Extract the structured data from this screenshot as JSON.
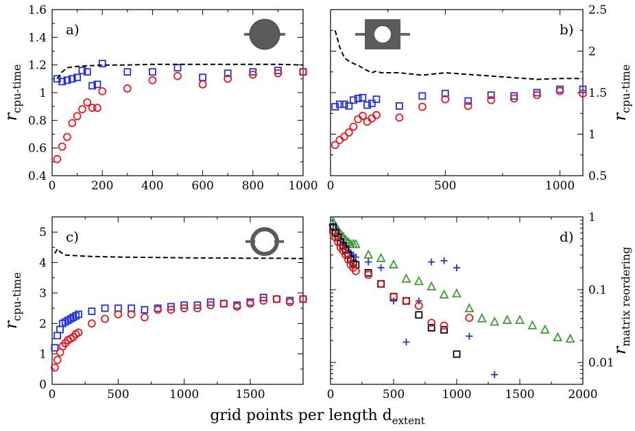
{
  "figure": {
    "xlabel_main": "grid points per length d",
    "xlabel_sub": "extent"
  },
  "chart_data": [
    {
      "id": "a",
      "type": "scatter",
      "panel_label": "a)",
      "ylabel_main": "r",
      "ylabel_sub": "cpu-time",
      "ylabel_side": "left",
      "xlim": [
        0,
        1000
      ],
      "ylim": [
        0.4,
        1.6
      ],
      "yscale": "linear",
      "xticks": [
        0,
        200,
        400,
        600,
        800,
        1000
      ],
      "yticks": [
        0.4,
        0.6,
        0.8,
        1.0,
        1.2,
        1.4,
        1.6
      ],
      "yticklabels": [
        "0.4",
        "0.6",
        "0.8",
        "1",
        "1.2",
        "1.4",
        "1.6"
      ],
      "inset": "disk",
      "series": [
        {
          "marker": "square",
          "color": "#1f2fd6",
          "x": [
            20,
            40,
            60,
            80,
            100,
            120,
            140,
            160,
            180,
            200,
            300,
            400,
            500,
            600,
            700,
            800,
            900,
            1000
          ],
          "y": [
            1.1,
            1.08,
            1.09,
            1.1,
            1.11,
            1.16,
            1.15,
            1.05,
            1.06,
            1.21,
            1.15,
            1.15,
            1.18,
            1.11,
            1.14,
            1.15,
            1.16,
            1.15
          ]
        },
        {
          "marker": "circle",
          "color": "#e8161b",
          "x": [
            20,
            40,
            60,
            80,
            100,
            120,
            140,
            160,
            180,
            200,
            300,
            400,
            500,
            600,
            700,
            800,
            900,
            1000
          ],
          "y": [
            0.52,
            0.61,
            0.68,
            0.78,
            0.83,
            0.88,
            0.93,
            0.89,
            0.89,
            1.01,
            1.03,
            1.09,
            1.12,
            1.06,
            1.1,
            1.13,
            1.14,
            1.15
          ]
        },
        {
          "marker": "dashed-line",
          "color": "#000000",
          "x": [
            20,
            40,
            60,
            100,
            150,
            200,
            300,
            400,
            500,
            600,
            700,
            800,
            900,
            1000
          ],
          "y": [
            1.1,
            1.15,
            1.18,
            1.19,
            1.195,
            1.2,
            1.2,
            1.205,
            1.205,
            1.205,
            1.205,
            1.205,
            1.205,
            1.2
          ]
        }
      ]
    },
    {
      "id": "b",
      "type": "scatter",
      "panel_label": "b)",
      "ylabel_main": "r",
      "ylabel_sub": "cpu-time",
      "ylabel_side": "right",
      "xlim": [
        0,
        1100
      ],
      "ylim": [
        0.5,
        2.5
      ],
      "yscale": "linear",
      "xticks": [
        0,
        500,
        1000
      ],
      "yticks": [
        0.5,
        1.0,
        1.5,
        2.0,
        2.5
      ],
      "yticklabels": [
        "0.5",
        "1",
        "1.5",
        "2",
        "2.5"
      ],
      "inset": "square-with-hole",
      "series": [
        {
          "marker": "square",
          "color": "#1f2fd6",
          "x": [
            20,
            40,
            60,
            80,
            100,
            120,
            140,
            160,
            180,
            200,
            300,
            400,
            500,
            600,
            700,
            800,
            900,
            1000,
            1100
          ],
          "y": [
            1.33,
            1.36,
            1.36,
            1.34,
            1.41,
            1.43,
            1.44,
            1.35,
            1.37,
            1.42,
            1.34,
            1.46,
            1.49,
            1.4,
            1.47,
            1.46,
            1.5,
            1.54,
            1.54
          ]
        },
        {
          "marker": "circle",
          "color": "#e8161b",
          "x": [
            20,
            40,
            60,
            80,
            100,
            120,
            140,
            160,
            180,
            200,
            300,
            400,
            500,
            600,
            700,
            800,
            900,
            1000,
            1100
          ],
          "y": [
            0.87,
            0.93,
            0.97,
            1.02,
            1.09,
            1.18,
            1.22,
            1.15,
            1.19,
            1.23,
            1.2,
            1.33,
            1.42,
            1.34,
            1.41,
            1.43,
            1.47,
            1.52,
            1.49
          ]
        },
        {
          "marker": "dashed-line",
          "color": "#000000",
          "x": [
            20,
            40,
            60,
            80,
            100,
            120,
            150,
            180,
            200,
            220,
            300,
            400,
            500,
            600,
            700,
            800,
            900,
            1000,
            1100
          ],
          "y": [
            2.25,
            2.05,
            1.92,
            1.88,
            1.85,
            1.83,
            1.78,
            1.74,
            1.76,
            1.74,
            1.74,
            1.71,
            1.74,
            1.72,
            1.7,
            1.68,
            1.66,
            1.67,
            1.67
          ]
        }
      ]
    },
    {
      "id": "c",
      "type": "scatter",
      "panel_label": "c)",
      "ylabel_main": "r",
      "ylabel_sub": "cpu-time",
      "ylabel_side": "left",
      "xlim": [
        0,
        1900
      ],
      "ylim": [
        0,
        5.5
      ],
      "yscale": "linear",
      "xticks": [
        0,
        500,
        1000,
        1500
      ],
      "yticks": [
        0,
        1,
        2,
        3,
        4,
        5
      ],
      "yticklabels": [
        "0",
        "1",
        "2",
        "3",
        "4",
        "5"
      ],
      "inset": "ring",
      "series": [
        {
          "marker": "square",
          "color": "#1f2fd6",
          "x": [
            20,
            40,
            60,
            80,
            100,
            120,
            140,
            160,
            180,
            200,
            300,
            400,
            500,
            600,
            700,
            800,
            900,
            1000,
            1100,
            1200,
            1300,
            1400,
            1500,
            1600,
            1700,
            1800,
            1900
          ],
          "y": [
            1.2,
            1.6,
            1.8,
            2.0,
            2.05,
            2.1,
            2.15,
            2.2,
            2.25,
            2.3,
            2.4,
            2.5,
            2.5,
            2.5,
            2.45,
            2.5,
            2.55,
            2.6,
            2.6,
            2.7,
            2.65,
            2.6,
            2.7,
            2.85,
            2.8,
            2.75,
            2.8
          ]
        },
        {
          "marker": "circle",
          "color": "#e8161b",
          "x": [
            20,
            40,
            60,
            80,
            100,
            120,
            140,
            160,
            180,
            200,
            300,
            400,
            500,
            600,
            700,
            800,
            900,
            1000,
            1100,
            1200,
            1300,
            1400,
            1500,
            1600,
            1700,
            1800,
            1900
          ],
          "y": [
            0.55,
            0.8,
            1.05,
            1.25,
            1.35,
            1.45,
            1.5,
            1.55,
            1.65,
            1.7,
            2.0,
            2.15,
            2.3,
            2.3,
            2.2,
            2.45,
            2.45,
            2.5,
            2.5,
            2.6,
            2.65,
            2.55,
            2.65,
            2.75,
            2.8,
            2.7,
            2.8
          ]
        },
        {
          "marker": "dashed-line",
          "color": "#000000",
          "x": [
            20,
            40,
            60,
            80,
            100,
            200,
            300,
            400,
            500,
            700,
            900,
            1100,
            1300,
            1500,
            1700,
            1900
          ],
          "y": [
            4.3,
            4.45,
            4.35,
            4.3,
            4.25,
            4.22,
            4.2,
            4.19,
            4.18,
            4.17,
            4.16,
            4.15,
            4.15,
            4.14,
            4.14,
            4.13
          ]
        }
      ]
    },
    {
      "id": "d",
      "type": "scatter",
      "panel_label": "d)",
      "ylabel_main": "r",
      "ylabel_sub": "matrix reordering",
      "ylabel_side": "right",
      "xlim": [
        0,
        2000
      ],
      "ylim": [
        0.005,
        1
      ],
      "yscale": "log",
      "xticks": [
        0,
        500,
        1000,
        1500,
        2000
      ],
      "yticks": [
        0.01,
        0.1,
        1
      ],
      "yticklabels": [
        "0.01",
        "0.1",
        "1"
      ],
      "series": [
        {
          "marker": "triangle",
          "color": "#3d9a31",
          "x": [
            20,
            40,
            60,
            80,
            100,
            120,
            140,
            160,
            180,
            200,
            300,
            400,
            500,
            600,
            700,
            800,
            900,
            1000,
            1100,
            1200,
            1300,
            1400,
            1500,
            1600,
            1700,
            1800,
            1900
          ],
          "y": [
            0.85,
            0.74,
            0.65,
            0.58,
            0.53,
            0.48,
            0.45,
            0.42,
            0.42,
            0.42,
            0.3,
            0.27,
            0.22,
            0.14,
            0.13,
            0.11,
            0.085,
            0.088,
            0.055,
            0.04,
            0.036,
            0.038,
            0.038,
            0.032,
            0.028,
            0.022,
            0.021
          ]
        },
        {
          "marker": "plus",
          "color": "#1f2fd6",
          "x": [
            20,
            40,
            60,
            80,
            100,
            120,
            140,
            160,
            180,
            200,
            300,
            400,
            500,
            600,
            700,
            800,
            900,
            1000,
            1100,
            1300
          ],
          "y": [
            0.8,
            0.68,
            0.58,
            0.5,
            0.45,
            0.4,
            0.35,
            0.32,
            0.3,
            0.28,
            0.24,
            0.2,
            0.07,
            0.019,
            0.07,
            0.24,
            0.25,
            0.2,
            0.023,
            0.0068
          ]
        },
        {
          "marker": "square",
          "color": "#000000",
          "x": [
            20,
            40,
            60,
            80,
            100,
            120,
            140,
            160,
            180,
            200,
            300,
            400,
            500,
            600,
            700,
            800,
            900,
            1000
          ],
          "y": [
            0.72,
            0.6,
            0.52,
            0.45,
            0.4,
            0.35,
            0.3,
            0.26,
            0.23,
            0.22,
            0.17,
            0.12,
            0.08,
            0.07,
            0.045,
            0.03,
            0.028,
            0.013
          ]
        },
        {
          "marker": "circle",
          "color": "#e8161b",
          "x": [
            20,
            40,
            60,
            80,
            100,
            120,
            140,
            160,
            180,
            200,
            300,
            400,
            500,
            600,
            700,
            800,
            900,
            1100
          ],
          "y": [
            0.62,
            0.52,
            0.45,
            0.38,
            0.34,
            0.3,
            0.26,
            0.22,
            0.2,
            0.18,
            0.16,
            0.12,
            0.08,
            0.07,
            0.06,
            0.035,
            0.032,
            0.041
          ]
        }
      ]
    }
  ]
}
